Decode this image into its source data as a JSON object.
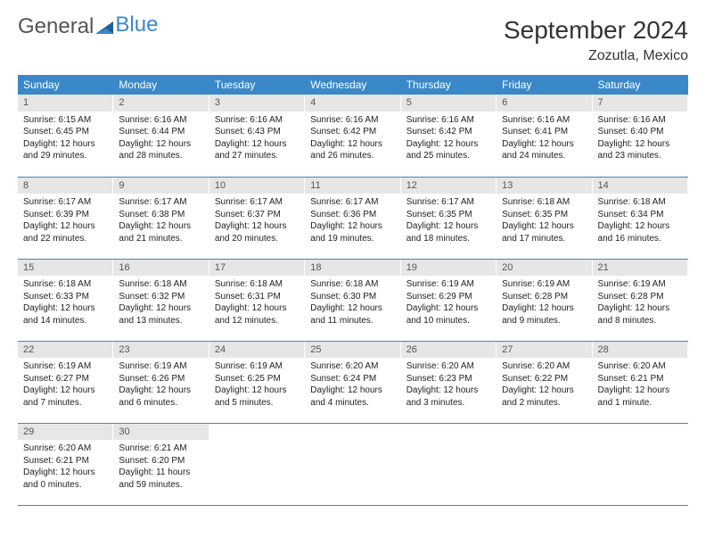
{
  "logo": {
    "text1": "General",
    "text2": "Blue"
  },
  "title": "September 2024",
  "location": "Zozutla, Mexico",
  "colors": {
    "header_bg": "#3a88c8",
    "header_fg": "#ffffff",
    "daynum_bg": "#e6e6e6",
    "row_border": "#3a88c8",
    "logo_gray": "#555555",
    "logo_blue": "#3a88c8"
  },
  "dayHeaders": [
    "Sunday",
    "Monday",
    "Tuesday",
    "Wednesday",
    "Thursday",
    "Friday",
    "Saturday"
  ],
  "weeks": [
    [
      {
        "n": "1",
        "sr": "6:15 AM",
        "ss": "6:45 PM",
        "dl": "12 hours and 29 minutes."
      },
      {
        "n": "2",
        "sr": "6:16 AM",
        "ss": "6:44 PM",
        "dl": "12 hours and 28 minutes."
      },
      {
        "n": "3",
        "sr": "6:16 AM",
        "ss": "6:43 PM",
        "dl": "12 hours and 27 minutes."
      },
      {
        "n": "4",
        "sr": "6:16 AM",
        "ss": "6:42 PM",
        "dl": "12 hours and 26 minutes."
      },
      {
        "n": "5",
        "sr": "6:16 AM",
        "ss": "6:42 PM",
        "dl": "12 hours and 25 minutes."
      },
      {
        "n": "6",
        "sr": "6:16 AM",
        "ss": "6:41 PM",
        "dl": "12 hours and 24 minutes."
      },
      {
        "n": "7",
        "sr": "6:16 AM",
        "ss": "6:40 PM",
        "dl": "12 hours and 23 minutes."
      }
    ],
    [
      {
        "n": "8",
        "sr": "6:17 AM",
        "ss": "6:39 PM",
        "dl": "12 hours and 22 minutes."
      },
      {
        "n": "9",
        "sr": "6:17 AM",
        "ss": "6:38 PM",
        "dl": "12 hours and 21 minutes."
      },
      {
        "n": "10",
        "sr": "6:17 AM",
        "ss": "6:37 PM",
        "dl": "12 hours and 20 minutes."
      },
      {
        "n": "11",
        "sr": "6:17 AM",
        "ss": "6:36 PM",
        "dl": "12 hours and 19 minutes."
      },
      {
        "n": "12",
        "sr": "6:17 AM",
        "ss": "6:35 PM",
        "dl": "12 hours and 18 minutes."
      },
      {
        "n": "13",
        "sr": "6:18 AM",
        "ss": "6:35 PM",
        "dl": "12 hours and 17 minutes."
      },
      {
        "n": "14",
        "sr": "6:18 AM",
        "ss": "6:34 PM",
        "dl": "12 hours and 16 minutes."
      }
    ],
    [
      {
        "n": "15",
        "sr": "6:18 AM",
        "ss": "6:33 PM",
        "dl": "12 hours and 14 minutes."
      },
      {
        "n": "16",
        "sr": "6:18 AM",
        "ss": "6:32 PM",
        "dl": "12 hours and 13 minutes."
      },
      {
        "n": "17",
        "sr": "6:18 AM",
        "ss": "6:31 PM",
        "dl": "12 hours and 12 minutes."
      },
      {
        "n": "18",
        "sr": "6:18 AM",
        "ss": "6:30 PM",
        "dl": "12 hours and 11 minutes."
      },
      {
        "n": "19",
        "sr": "6:19 AM",
        "ss": "6:29 PM",
        "dl": "12 hours and 10 minutes."
      },
      {
        "n": "20",
        "sr": "6:19 AM",
        "ss": "6:28 PM",
        "dl": "12 hours and 9 minutes."
      },
      {
        "n": "21",
        "sr": "6:19 AM",
        "ss": "6:28 PM",
        "dl": "12 hours and 8 minutes."
      }
    ],
    [
      {
        "n": "22",
        "sr": "6:19 AM",
        "ss": "6:27 PM",
        "dl": "12 hours and 7 minutes."
      },
      {
        "n": "23",
        "sr": "6:19 AM",
        "ss": "6:26 PM",
        "dl": "12 hours and 6 minutes."
      },
      {
        "n": "24",
        "sr": "6:19 AM",
        "ss": "6:25 PM",
        "dl": "12 hours and 5 minutes."
      },
      {
        "n": "25",
        "sr": "6:20 AM",
        "ss": "6:24 PM",
        "dl": "12 hours and 4 minutes."
      },
      {
        "n": "26",
        "sr": "6:20 AM",
        "ss": "6:23 PM",
        "dl": "12 hours and 3 minutes."
      },
      {
        "n": "27",
        "sr": "6:20 AM",
        "ss": "6:22 PM",
        "dl": "12 hours and 2 minutes."
      },
      {
        "n": "28",
        "sr": "6:20 AM",
        "ss": "6:21 PM",
        "dl": "12 hours and 1 minute."
      }
    ],
    [
      {
        "n": "29",
        "sr": "6:20 AM",
        "ss": "6:21 PM",
        "dl": "12 hours and 0 minutes."
      },
      {
        "n": "30",
        "sr": "6:21 AM",
        "ss": "6:20 PM",
        "dl": "11 hours and 59 minutes."
      },
      null,
      null,
      null,
      null,
      null
    ]
  ],
  "labels": {
    "sunrise": "Sunrise: ",
    "sunset": "Sunset: ",
    "daylight": "Daylight: "
  }
}
